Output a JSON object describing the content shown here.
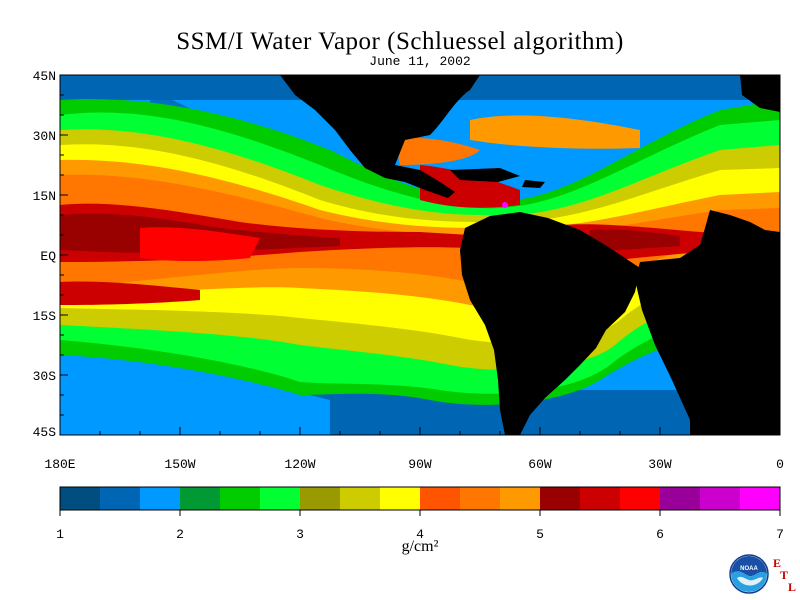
{
  "title": "SSM/I Water Vapor (Schluessel algorithm)",
  "subtitle": "June 11, 2002",
  "latitude_labels": [
    "45N",
    "30N",
    "15N",
    "EQ",
    "15S",
    "30S",
    "45S"
  ],
  "longitude_labels": [
    "180E",
    "150W",
    "120W",
    "90W",
    "60W",
    "30W",
    "0"
  ],
  "colorbar": {
    "ticks": [
      "1",
      "2",
      "3",
      "4",
      "5",
      "6",
      "7"
    ],
    "unit": "g/cm²",
    "colors": [
      "#004d80",
      "#0066b3",
      "#0099ff",
      "#009933",
      "#00cc00",
      "#00ff33",
      "#999900",
      "#cccc00",
      "#ffff00",
      "#ff5500",
      "#ff7700",
      "#ff9900",
      "#990000",
      "#cc0000",
      "#ff0000",
      "#990099",
      "#cc00cc",
      "#ff00ff"
    ]
  },
  "land_color": "#000000",
  "logo": {
    "text": "NOAA",
    "letters": [
      "E",
      "T",
      "L"
    ]
  }
}
